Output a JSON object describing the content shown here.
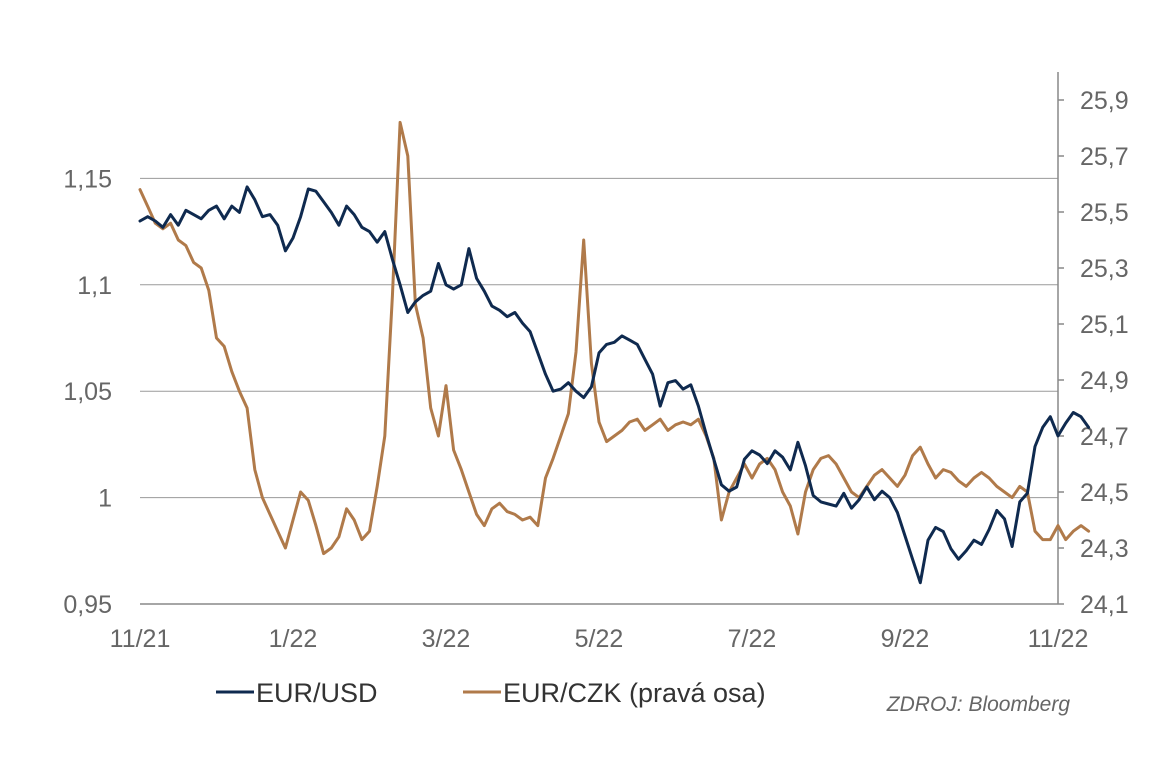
{
  "chart_data": {
    "type": "line",
    "x_ticks": [
      "11/21",
      "1/22",
      "3/22",
      "5/22",
      "7/22",
      "9/22",
      "11/22"
    ],
    "y_left": {
      "ticks": [
        "0,95",
        "1",
        "1,05",
        "1,1",
        "1,15"
      ],
      "values": [
        0.95,
        1.0,
        1.05,
        1.1,
        1.15
      ],
      "lim": [
        0.95,
        1.2
      ]
    },
    "y_right": {
      "ticks": [
        "24,1",
        "24,3",
        "24,5",
        "24,7",
        "24,9",
        "25,1",
        "25,3",
        "25,5",
        "25,7",
        "25,9"
      ],
      "values": [
        24.1,
        24.3,
        24.5,
        24.7,
        24.9,
        25.1,
        25.3,
        25.5,
        25.7,
        25.9
      ],
      "lim": [
        24.1,
        26.0
      ]
    },
    "grid": true,
    "legend_position": "bottom",
    "source": "ZDROJ: Bloomberg",
    "series": [
      {
        "name": "EUR/USD",
        "axis": "left",
        "color": "#0f2a4f",
        "points": [
          [
            0.0,
            1.13
          ],
          [
            0.05,
            1.132
          ],
          [
            0.1,
            1.13
          ],
          [
            0.15,
            1.127
          ],
          [
            0.2,
            1.133
          ],
          [
            0.25,
            1.128
          ],
          [
            0.3,
            1.135
          ],
          [
            0.35,
            1.133
          ],
          [
            0.4,
            1.131
          ],
          [
            0.45,
            1.135
          ],
          [
            0.5,
            1.137
          ],
          [
            0.55,
            1.131
          ],
          [
            0.6,
            1.137
          ],
          [
            0.65,
            1.134
          ],
          [
            0.7,
            1.146
          ],
          [
            0.75,
            1.14
          ],
          [
            0.8,
            1.132
          ],
          [
            0.85,
            1.133
          ],
          [
            0.9,
            1.128
          ],
          [
            0.95,
            1.116
          ],
          [
            1.0,
            1.122
          ],
          [
            1.05,
            1.132
          ],
          [
            1.1,
            1.145
          ],
          [
            1.15,
            1.144
          ],
          [
            1.2,
            1.139
          ],
          [
            1.25,
            1.134
          ],
          [
            1.3,
            1.128
          ],
          [
            1.35,
            1.137
          ],
          [
            1.4,
            1.133
          ],
          [
            1.45,
            1.127
          ],
          [
            1.5,
            1.125
          ],
          [
            1.55,
            1.12
          ],
          [
            1.6,
            1.125
          ],
          [
            1.65,
            1.112
          ],
          [
            1.7,
            1.1
          ],
          [
            1.75,
            1.087
          ],
          [
            1.8,
            1.092
          ],
          [
            1.85,
            1.095
          ],
          [
            1.9,
            1.097
          ],
          [
            1.95,
            1.11
          ],
          [
            2.0,
            1.1
          ],
          [
            2.05,
            1.098
          ],
          [
            2.1,
            1.1
          ],
          [
            2.15,
            1.117
          ],
          [
            2.2,
            1.103
          ],
          [
            2.25,
            1.097
          ],
          [
            2.3,
            1.09
          ],
          [
            2.35,
            1.088
          ],
          [
            2.4,
            1.085
          ],
          [
            2.45,
            1.087
          ],
          [
            2.5,
            1.082
          ],
          [
            2.55,
            1.078
          ],
          [
            2.6,
            1.068
          ],
          [
            2.65,
            1.058
          ],
          [
            2.7,
            1.05
          ],
          [
            2.75,
            1.051
          ],
          [
            2.8,
            1.054
          ],
          [
            2.85,
            1.05
          ],
          [
            2.9,
            1.047
          ],
          [
            2.95,
            1.052
          ],
          [
            3.0,
            1.068
          ],
          [
            3.05,
            1.072
          ],
          [
            3.1,
            1.073
          ],
          [
            3.15,
            1.076
          ],
          [
            3.2,
            1.074
          ],
          [
            3.25,
            1.072
          ],
          [
            3.3,
            1.065
          ],
          [
            3.35,
            1.058
          ],
          [
            3.4,
            1.043
          ],
          [
            3.45,
            1.054
          ],
          [
            3.5,
            1.055
          ],
          [
            3.55,
            1.051
          ],
          [
            3.6,
            1.053
          ],
          [
            3.65,
            1.043
          ],
          [
            3.7,
            1.03
          ],
          [
            3.75,
            1.018
          ],
          [
            3.8,
            1.006
          ],
          [
            3.85,
            1.003
          ],
          [
            3.9,
            1.005
          ],
          [
            3.95,
            1.018
          ],
          [
            4.0,
            1.022
          ],
          [
            4.05,
            1.02
          ],
          [
            4.1,
            1.016
          ],
          [
            4.15,
            1.022
          ],
          [
            4.2,
            1.019
          ],
          [
            4.25,
            1.013
          ],
          [
            4.3,
            1.026
          ],
          [
            4.35,
            1.015
          ],
          [
            4.4,
            1.001
          ],
          [
            4.45,
            0.998
          ],
          [
            4.5,
            0.997
          ],
          [
            4.55,
            0.996
          ],
          [
            4.6,
            1.002
          ],
          [
            4.65,
            0.995
          ],
          [
            4.7,
            0.999
          ],
          [
            4.75,
            1.005
          ],
          [
            4.8,
            0.999
          ],
          [
            4.85,
            1.003
          ],
          [
            4.9,
            1.0
          ],
          [
            4.95,
            0.993
          ],
          [
            5.0,
            0.982
          ],
          [
            5.05,
            0.971
          ],
          [
            5.1,
            0.96
          ],
          [
            5.15,
            0.98
          ],
          [
            5.2,
            0.986
          ],
          [
            5.25,
            0.984
          ],
          [
            5.3,
            0.976
          ],
          [
            5.35,
            0.971
          ],
          [
            5.4,
            0.975
          ],
          [
            5.45,
            0.98
          ],
          [
            5.5,
            0.978
          ],
          [
            5.55,
            0.985
          ],
          [
            5.6,
            0.994
          ],
          [
            5.65,
            0.99
          ],
          [
            5.7,
            0.977
          ],
          [
            5.75,
            0.998
          ],
          [
            5.8,
            1.002
          ],
          [
            5.85,
            1.024
          ],
          [
            5.9,
            1.033
          ],
          [
            5.95,
            1.038
          ],
          [
            6.0,
            1.029
          ],
          [
            6.05,
            1.035
          ],
          [
            6.1,
            1.04
          ],
          [
            6.15,
            1.038
          ],
          [
            6.2,
            1.033
          ]
        ]
      },
      {
        "name": "EUR/CZK (pravá osa)",
        "axis": "right",
        "color": "#b07a4a",
        "points": [
          [
            0.0,
            25.58
          ],
          [
            0.05,
            25.52
          ],
          [
            0.1,
            25.46
          ],
          [
            0.15,
            25.44
          ],
          [
            0.2,
            25.46
          ],
          [
            0.25,
            25.4
          ],
          [
            0.3,
            25.38
          ],
          [
            0.35,
            25.32
          ],
          [
            0.4,
            25.3
          ],
          [
            0.45,
            25.22
          ],
          [
            0.5,
            25.05
          ],
          [
            0.55,
            25.02
          ],
          [
            0.6,
            24.93
          ],
          [
            0.65,
            24.86
          ],
          [
            0.7,
            24.8
          ],
          [
            0.75,
            24.58
          ],
          [
            0.8,
            24.48
          ],
          [
            0.85,
            24.42
          ],
          [
            0.9,
            24.36
          ],
          [
            0.95,
            24.3
          ],
          [
            1.0,
            24.4
          ],
          [
            1.05,
            24.5
          ],
          [
            1.1,
            24.47
          ],
          [
            1.15,
            24.38
          ],
          [
            1.2,
            24.28
          ],
          [
            1.25,
            24.3
          ],
          [
            1.3,
            24.34
          ],
          [
            1.35,
            24.44
          ],
          [
            1.4,
            24.4
          ],
          [
            1.45,
            24.33
          ],
          [
            1.5,
            24.36
          ],
          [
            1.55,
            24.52
          ],
          [
            1.6,
            24.7
          ],
          [
            1.65,
            25.2
          ],
          [
            1.7,
            25.82
          ],
          [
            1.75,
            25.7
          ],
          [
            1.8,
            25.17
          ],
          [
            1.85,
            25.05
          ],
          [
            1.9,
            24.8
          ],
          [
            1.95,
            24.7
          ],
          [
            2.0,
            24.88
          ],
          [
            2.05,
            24.65
          ],
          [
            2.1,
            24.58
          ],
          [
            2.15,
            24.5
          ],
          [
            2.2,
            24.42
          ],
          [
            2.25,
            24.38
          ],
          [
            2.3,
            24.44
          ],
          [
            2.35,
            24.46
          ],
          [
            2.4,
            24.43
          ],
          [
            2.45,
            24.42
          ],
          [
            2.5,
            24.4
          ],
          [
            2.55,
            24.41
          ],
          [
            2.6,
            24.38
          ],
          [
            2.65,
            24.55
          ],
          [
            2.7,
            24.62
          ],
          [
            2.75,
            24.7
          ],
          [
            2.8,
            24.78
          ],
          [
            2.85,
            25.0
          ],
          [
            2.9,
            25.4
          ],
          [
            2.95,
            24.96
          ],
          [
            3.0,
            24.75
          ],
          [
            3.05,
            24.68
          ],
          [
            3.1,
            24.7
          ],
          [
            3.15,
            24.72
          ],
          [
            3.2,
            24.75
          ],
          [
            3.25,
            24.76
          ],
          [
            3.3,
            24.72
          ],
          [
            3.35,
            24.74
          ],
          [
            3.4,
            24.76
          ],
          [
            3.45,
            24.72
          ],
          [
            3.5,
            24.74
          ],
          [
            3.55,
            24.75
          ],
          [
            3.6,
            24.74
          ],
          [
            3.65,
            24.76
          ],
          [
            3.7,
            24.7
          ],
          [
            3.75,
            24.62
          ],
          [
            3.8,
            24.4
          ],
          [
            3.85,
            24.5
          ],
          [
            3.9,
            24.55
          ],
          [
            3.95,
            24.6
          ],
          [
            4.0,
            24.55
          ],
          [
            4.05,
            24.6
          ],
          [
            4.1,
            24.62
          ],
          [
            4.15,
            24.58
          ],
          [
            4.2,
            24.5
          ],
          [
            4.25,
            24.45
          ],
          [
            4.3,
            24.35
          ],
          [
            4.35,
            24.5
          ],
          [
            4.4,
            24.58
          ],
          [
            4.45,
            24.62
          ],
          [
            4.5,
            24.63
          ],
          [
            4.55,
            24.6
          ],
          [
            4.6,
            24.55
          ],
          [
            4.65,
            24.5
          ],
          [
            4.7,
            24.48
          ],
          [
            4.75,
            24.52
          ],
          [
            4.8,
            24.56
          ],
          [
            4.85,
            24.58
          ],
          [
            4.9,
            24.55
          ],
          [
            4.95,
            24.52
          ],
          [
            5.0,
            24.56
          ],
          [
            5.05,
            24.63
          ],
          [
            5.1,
            24.66
          ],
          [
            5.15,
            24.6
          ],
          [
            5.2,
            24.55
          ],
          [
            5.25,
            24.58
          ],
          [
            5.3,
            24.57
          ],
          [
            5.35,
            24.54
          ],
          [
            5.4,
            24.52
          ],
          [
            5.45,
            24.55
          ],
          [
            5.5,
            24.57
          ],
          [
            5.55,
            24.55
          ],
          [
            5.6,
            24.52
          ],
          [
            5.65,
            24.5
          ],
          [
            5.7,
            24.48
          ],
          [
            5.75,
            24.52
          ],
          [
            5.8,
            24.5
          ],
          [
            5.85,
            24.36
          ],
          [
            5.9,
            24.33
          ],
          [
            5.95,
            24.33
          ],
          [
            6.0,
            24.38
          ],
          [
            6.05,
            24.33
          ],
          [
            6.1,
            24.36
          ],
          [
            6.15,
            24.38
          ],
          [
            6.2,
            24.36
          ]
        ]
      }
    ]
  }
}
